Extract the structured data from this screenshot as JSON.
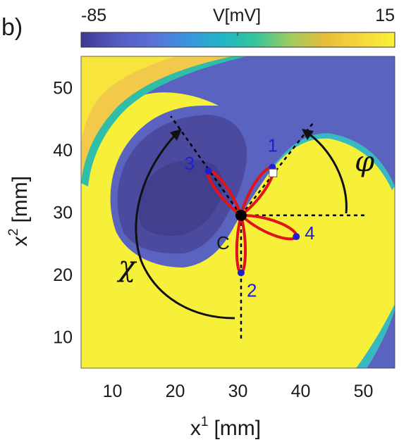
{
  "panel_label": "b)",
  "colorbar": {
    "min_label": "-85",
    "max_label": "15",
    "title": "V[mV]",
    "colors": [
      "#3c3b91",
      "#5659c2",
      "#5b6fd6",
      "#3d92e0",
      "#21b4c8",
      "#35c59c",
      "#9fcb5f",
      "#e7bd3a",
      "#f7d63c",
      "#f9f23a"
    ]
  },
  "chart_data": {
    "type": "heatmap",
    "description_of_field": "spiral wave membrane potential map",
    "xlabel": "x",
    "xlabel_sup": "1",
    "xlabel_unit": "[mm]",
    "ylabel": "x",
    "ylabel_sup": "2",
    "ylabel_unit": "[mm]",
    "xlim": [
      5,
      55
    ],
    "ylim": [
      5,
      55
    ],
    "xticks": [
      10,
      20,
      30,
      40,
      50
    ],
    "yticks": [
      10,
      20,
      30,
      40,
      50
    ],
    "center": {
      "label": "C",
      "x": 30.5,
      "y": 29.5
    },
    "points": [
      {
        "label": "1",
        "x": 35.5,
        "y": 37.2
      },
      {
        "label": "2",
        "x": 30.5,
        "y": 20.3
      },
      {
        "label": "3",
        "x": 25.3,
        "y": 36.6
      },
      {
        "label": "4",
        "x": 39.3,
        "y": 26.1
      }
    ],
    "square_marker": {
      "x": 35.6,
      "y": 36.3
    },
    "angles": [
      {
        "symbol": "φ",
        "name": "phi"
      },
      {
        "symbol": "χ",
        "name": "chi"
      }
    ],
    "guide_lines": [
      {
        "from": [
          30.5,
          29.5
        ],
        "to": [
          42.2,
          44.6
        ]
      },
      {
        "from": [
          30.5,
          29.5
        ],
        "to": [
          19.3,
          45.4
        ]
      },
      {
        "from": [
          30.5,
          29.5
        ],
        "to": [
          50.5,
          29.5
        ]
      },
      {
        "from": [
          30.5,
          29.5
        ],
        "to": [
          30.5,
          9.5
        ]
      }
    ]
  }
}
